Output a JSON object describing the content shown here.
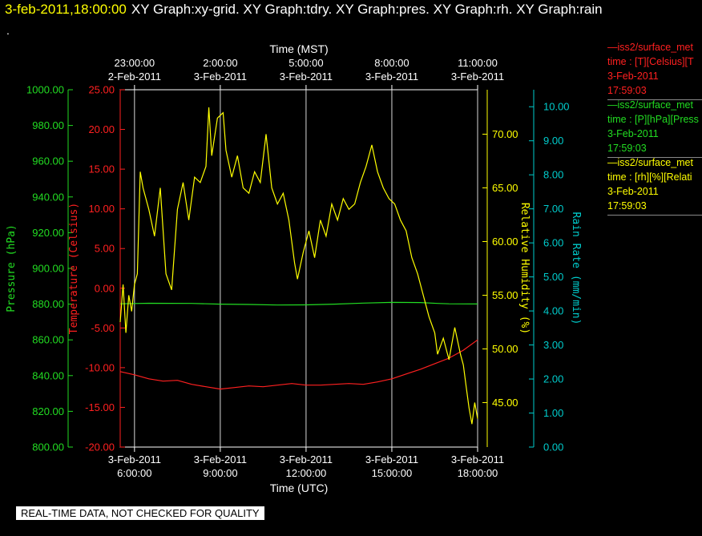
{
  "header": {
    "datetime": "3-feb-2011,18:00:00",
    "graphs": "XY Graph:xy-grid.  XY Graph:tdry.  XY Graph:pres.  XY Graph:rh.  XY Graph:rain",
    "dot": "."
  },
  "notice": "REAL-TIME DATA, NOT CHECKED FOR QUALITY",
  "legend": [
    {
      "series": "—iss2/surface_met",
      "fields": "time : [T][Celsius][T",
      "date": "3-Feb-2011",
      "time": "17:59:03",
      "color": "#ff2020"
    },
    {
      "series": "—iss2/surface_met",
      "fields": "time : [P][hPa][Press",
      "date": "3-Feb-2011",
      "time": "17:59:03",
      "color": "#22dd22"
    },
    {
      "series": "—iss2/surface_met",
      "fields": "time : [rh][%][Relati",
      "date": "3-Feb-2011",
      "time": "17:59:03",
      "color": "#ffff00"
    }
  ],
  "chart_data": {
    "type": "line",
    "xlabel_bottom": "Time (UTC)",
    "xlabel_top": "Time (MST)",
    "xlim_hours_utc": [
      5.5,
      18.0
    ],
    "x_ticks_bottom": [
      {
        "h": 6,
        "date": "3-Feb-2011",
        "time": "6:00:00"
      },
      {
        "h": 9,
        "date": "3-Feb-2011",
        "time": "9:00:00"
      },
      {
        "h": 12,
        "date": "3-Feb-2011",
        "time": "12:00:00"
      },
      {
        "h": 15,
        "date": "3-Feb-2011",
        "time": "15:00:00"
      },
      {
        "h": 18,
        "date": "3-Feb-2011",
        "time": "18:00:00"
      }
    ],
    "x_ticks_top": [
      {
        "h": 6,
        "time": "23:00:00",
        "date": "2-Feb-2011"
      },
      {
        "h": 9,
        "time": "2:00:00",
        "date": "3-Feb-2011"
      },
      {
        "h": 12,
        "time": "5:00:00",
        "date": "3-Feb-2011"
      },
      {
        "h": 15,
        "time": "8:00:00",
        "date": "3-Feb-2011"
      },
      {
        "h": 18,
        "time": "11:00:00",
        "date": "3-Feb-2011"
      }
    ],
    "grid": "vertical",
    "axes": {
      "pressure": {
        "label": "Pressure (hPa)",
        "lim": [
          800,
          1000
        ],
        "ticks": [
          "800.00",
          "820.00",
          "840.00",
          "860.00",
          "880.00",
          "900.00",
          "920.00",
          "940.00",
          "960.00",
          "980.00",
          "1000.00"
        ],
        "color": "#22dd22"
      },
      "temperature": {
        "label": "Temperature (Celsius)",
        "lim": [
          -20,
          25
        ],
        "ticks": [
          "-20.00",
          "-15.00",
          "-10.00",
          "-5.00",
          "0.00",
          "5.00",
          "10.00",
          "15.00",
          "20.00",
          "25.00"
        ],
        "color": "#ff2020"
      },
      "rh": {
        "label": "Relative Humidity (%)",
        "lim": [
          40.86,
          74.14
        ],
        "ticks": [
          "45.00",
          "50.00",
          "55.00",
          "60.00",
          "65.00",
          "70.00"
        ],
        "color": "#ffff00"
      },
      "rain": {
        "label": "Rain Rate (mm/min)",
        "lim": [
          0,
          10.5
        ],
        "ticks": [
          "0.00",
          "1.00",
          "2.00",
          "3.00",
          "4.00",
          "5.00",
          "6.00",
          "7.00",
          "8.00",
          "9.00",
          "10.00"
        ],
        "color": "#00cccc"
      }
    },
    "series": [
      {
        "key": "pressure",
        "color": "#22dd22",
        "points": [
          [
            5.5,
            880.2
          ],
          [
            6.5,
            880.5
          ],
          [
            8,
            880.4
          ],
          [
            9,
            880.0
          ],
          [
            10,
            879.8
          ],
          [
            11,
            879.5
          ],
          [
            12,
            879.6
          ],
          [
            13,
            880.0
          ],
          [
            14,
            880.6
          ],
          [
            15,
            881.0
          ],
          [
            16,
            880.9
          ],
          [
            16.6,
            880.4
          ],
          [
            17,
            880.2
          ],
          [
            18,
            880.1
          ]
        ]
      },
      {
        "key": "temperature",
        "color": "#ff2020",
        "points": [
          [
            5.5,
            -10.5
          ],
          [
            6,
            -10.9
          ],
          [
            6.5,
            -11.4
          ],
          [
            7,
            -11.7
          ],
          [
            7.5,
            -11.6
          ],
          [
            8,
            -12.1
          ],
          [
            8.5,
            -12.4
          ],
          [
            9,
            -12.7
          ],
          [
            9.5,
            -12.5
          ],
          [
            10,
            -12.3
          ],
          [
            10.5,
            -12.4
          ],
          [
            11,
            -12.2
          ],
          [
            11.5,
            -12.0
          ],
          [
            12,
            -12.2
          ],
          [
            12.5,
            -12.2
          ],
          [
            13,
            -12.1
          ],
          [
            13.5,
            -12.0
          ],
          [
            14,
            -12.1
          ],
          [
            14.5,
            -11.8
          ],
          [
            15,
            -11.4
          ],
          [
            15.5,
            -10.8
          ],
          [
            16,
            -10.2
          ],
          [
            16.5,
            -9.5
          ],
          [
            17,
            -8.8
          ],
          [
            17.5,
            -7.8
          ],
          [
            18,
            -6.5
          ]
        ]
      },
      {
        "key": "rh",
        "color": "#ffff00",
        "points": [
          [
            5.5,
            52.5
          ],
          [
            5.6,
            56.0
          ],
          [
            5.7,
            51.5
          ],
          [
            5.8,
            55.0
          ],
          [
            5.9,
            53.5
          ],
          [
            6.0,
            56.0
          ],
          [
            6.1,
            57.0
          ],
          [
            6.2,
            66.5
          ],
          [
            6.3,
            65.0
          ],
          [
            6.5,
            63.0
          ],
          [
            6.7,
            60.5
          ],
          [
            6.9,
            65.0
          ],
          [
            7.1,
            57.0
          ],
          [
            7.3,
            55.5
          ],
          [
            7.5,
            63.0
          ],
          [
            7.7,
            65.5
          ],
          [
            7.9,
            62.0
          ],
          [
            8.1,
            66.0
          ],
          [
            8.3,
            65.5
          ],
          [
            8.5,
            67.0
          ],
          [
            8.6,
            72.5
          ],
          [
            8.7,
            68.0
          ],
          [
            8.9,
            71.5
          ],
          [
            9.1,
            72.0
          ],
          [
            9.2,
            68.5
          ],
          [
            9.4,
            66.0
          ],
          [
            9.6,
            68.0
          ],
          [
            9.8,
            65.0
          ],
          [
            10.0,
            64.5
          ],
          [
            10.2,
            66.5
          ],
          [
            10.4,
            65.5
          ],
          [
            10.6,
            70.0
          ],
          [
            10.8,
            65.0
          ],
          [
            11.0,
            63.5
          ],
          [
            11.2,
            64.5
          ],
          [
            11.4,
            62.0
          ],
          [
            11.6,
            58.0
          ],
          [
            11.7,
            56.5
          ],
          [
            11.9,
            59.0
          ],
          [
            12.1,
            61.0
          ],
          [
            12.3,
            58.5
          ],
          [
            12.5,
            62.0
          ],
          [
            12.7,
            60.5
          ],
          [
            12.9,
            63.5
          ],
          [
            13.1,
            62.0
          ],
          [
            13.3,
            64.0
          ],
          [
            13.5,
            63.0
          ],
          [
            13.7,
            63.5
          ],
          [
            13.9,
            65.5
          ],
          [
            14.1,
            67.0
          ],
          [
            14.3,
            69.0
          ],
          [
            14.5,
            66.5
          ],
          [
            14.7,
            65.0
          ],
          [
            14.9,
            64.0
          ],
          [
            15.1,
            63.5
          ],
          [
            15.3,
            62.0
          ],
          [
            15.5,
            61.0
          ],
          [
            15.7,
            58.5
          ],
          [
            15.9,
            57.0
          ],
          [
            16.1,
            55.0
          ],
          [
            16.3,
            53.0
          ],
          [
            16.5,
            51.5
          ],
          [
            16.6,
            49.5
          ],
          [
            16.8,
            51.0
          ],
          [
            17.0,
            49.0
          ],
          [
            17.2,
            52.0
          ],
          [
            17.4,
            49.5
          ],
          [
            17.5,
            48.5
          ],
          [
            17.6,
            46.5
          ],
          [
            17.7,
            44.5
          ],
          [
            17.8,
            43.0
          ],
          [
            17.9,
            45.0
          ],
          [
            18.0,
            43.5
          ]
        ]
      }
    ]
  }
}
